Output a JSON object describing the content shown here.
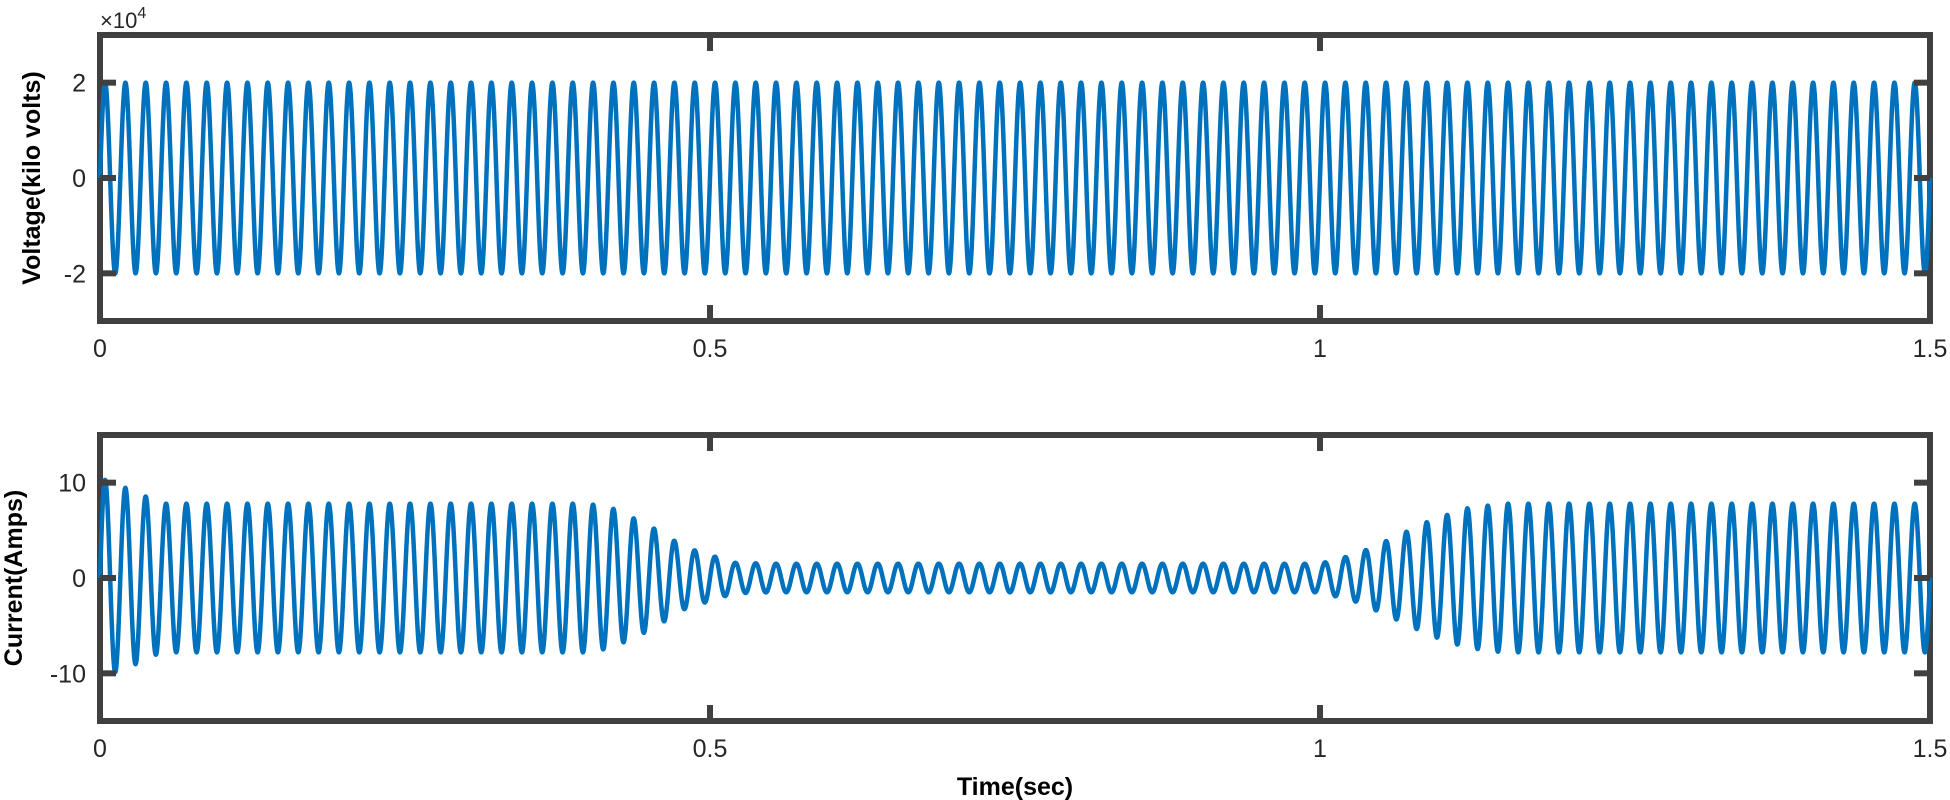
{
  "chart_data": [
    {
      "type": "line",
      "title": "",
      "xlabel": "",
      "ylabel": "Voltage(kilo volts)",
      "y_multiplier_label": "×10",
      "y_multiplier_exponent": "4",
      "xlim": [
        0,
        1.5
      ],
      "ylim": [
        -3,
        3
      ],
      "x_ticks": [
        0,
        0.5,
        1,
        1.5
      ],
      "x_tick_labels": [
        "0",
        "0.5",
        "1",
        "1.5"
      ],
      "y_ticks": [
        -2,
        0,
        2
      ],
      "y_tick_labels": [
        "-2",
        "0",
        "2"
      ],
      "grid": false,
      "series": [
        {
          "color": "#0072BD",
          "signal": "sinusoid",
          "frequency_hz": 60,
          "x": [
            0,
            0.1,
            0.2,
            0.3,
            0.4,
            0.5,
            0.6,
            0.7,
            0.8,
            0.9,
            1.0,
            1.1,
            1.2,
            1.3,
            1.4,
            1.5
          ],
          "amplitude": [
            2,
            2,
            2,
            2,
            2,
            2,
            2,
            2,
            2,
            2,
            2,
            2,
            2,
            2,
            2,
            2
          ]
        }
      ]
    },
    {
      "type": "line",
      "title": "",
      "xlabel": "Time(sec)",
      "ylabel": "Current(Amps)",
      "xlim": [
        0,
        1.5
      ],
      "ylim": [
        -15,
        15
      ],
      "x_ticks": [
        0,
        0.5,
        1,
        1.5
      ],
      "x_tick_labels": [
        "0",
        "0.5",
        "1",
        "1.5"
      ],
      "y_ticks": [
        -10,
        0,
        10
      ],
      "y_tick_labels": [
        "-10",
        "0",
        "10"
      ],
      "grid": false,
      "series": [
        {
          "color": "#0072BD",
          "signal": "sinusoid",
          "frequency_hz": 60,
          "x": [
            0,
            0.01,
            0.03,
            0.05,
            0.1,
            0.4,
            0.42,
            0.45,
            0.48,
            0.52,
            0.55,
            1.0,
            1.03,
            1.06,
            1.09,
            1.12,
            1.15,
            1.5
          ],
          "amplitude": [
            10.5,
            10,
            9,
            7.8,
            7.8,
            7.8,
            7.3,
            5.5,
            3.2,
            1.6,
            1.5,
            1.5,
            2.5,
            4.2,
            6.0,
            7.3,
            7.8,
            7.8
          ]
        }
      ]
    }
  ]
}
